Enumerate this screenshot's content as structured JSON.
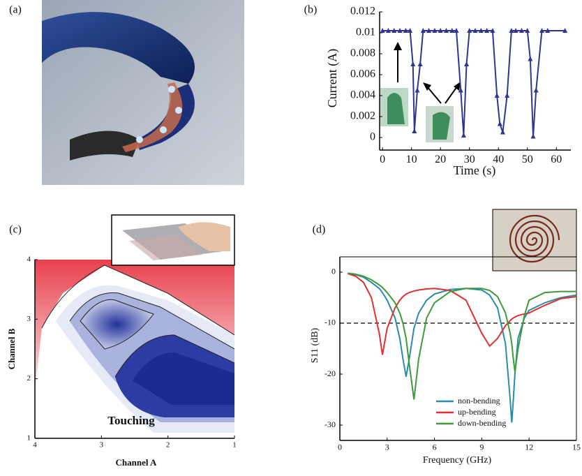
{
  "photo_panel": {
    "label": "(a)"
  },
  "chart_data": [
    {
      "type": "line",
      "label": "(b)",
      "x_label": "Time (s)",
      "y_label": "Current (A)",
      "xlim": [
        -1,
        65
      ],
      "xticks": [
        0,
        10,
        20,
        30,
        40,
        50,
        60
      ],
      "ylim": [
        -0.0012,
        0.012
      ],
      "yticks": [
        0,
        0.002,
        0.004,
        0.006,
        0.008,
        0.01,
        0.012
      ],
      "marker": "triangle",
      "series": [
        {
          "color": "#2e3592",
          "x": [
            0,
            2,
            4,
            6,
            8,
            9.5,
            10.5,
            11,
            12,
            13,
            14,
            16,
            18,
            20,
            22,
            24,
            25.5,
            27,
            28,
            29,
            30,
            32,
            34,
            36,
            38,
            39.5,
            40.5,
            41.5,
            43,
            44.5,
            46,
            48,
            50,
            51,
            52,
            53,
            55,
            57,
            63
          ],
          "values": [
            0.0102,
            0.0102,
            0.0102,
            0.0102,
            0.0102,
            0.0102,
            0.007,
            0.0006,
            0.0045,
            0.007,
            0.0102,
            0.0102,
            0.0102,
            0.0102,
            0.0102,
            0.0102,
            0.0102,
            0.0045,
            0.0002,
            0.007,
            0.0102,
            0.0102,
            0.0102,
            0.0102,
            0.0102,
            0.004,
            0.0013,
            0.0005,
            0.004,
            0.0102,
            0.0102,
            0.0102,
            0.0102,
            0.0075,
            0.0001,
            0.0045,
            0.0102,
            0.0102,
            0.0102
          ]
        }
      ]
    },
    {
      "type": "contour",
      "label": "(c)",
      "x_label": "Channel A",
      "y_label": "Channel B",
      "xlim": [
        4,
        1
      ],
      "xticks": [
        4,
        3,
        2,
        1
      ],
      "ylim": [
        1,
        4
      ],
      "yticks": [
        1,
        2,
        3,
        4
      ],
      "annotation": "Touching"
    },
    {
      "type": "line",
      "label": "(d)",
      "x_label": "Frequency (GHz)",
      "y_label": "S11 (dB)",
      "xlim": [
        0,
        15
      ],
      "xticks": [
        0,
        3,
        6,
        9,
        12,
        15
      ],
      "ylim": [
        -33,
        3
      ],
      "yticks": [
        0,
        -10,
        -20,
        -30
      ],
      "hline": -10,
      "x": [
        0.5,
        1,
        1.5,
        2,
        2.5,
        2.7,
        3,
        3.5,
        3.8,
        4,
        4.2,
        4.4,
        4.7,
        5,
        5.5,
        6,
        7,
        8,
        9,
        9.5,
        10,
        10.5,
        10.8,
        10.9,
        11,
        11.1,
        11.3,
        11.7,
        12,
        13,
        14,
        15
      ],
      "series": [
        {
          "name": "non-bending",
          "color": "#2a8ca6",
          "values": [
            -0.3,
            -0.5,
            -1,
            -2,
            -3.2,
            -4,
            -5.5,
            -9,
            -13,
            -17,
            -20.5,
            -17,
            -11,
            -8,
            -5.5,
            -4.3,
            -3.4,
            -3.2,
            -3.5,
            -4.5,
            -7,
            -14,
            -25,
            -29.5,
            -25,
            -20,
            -13,
            -9,
            -7.5,
            -6,
            -5,
            -4.5
          ]
        },
        {
          "name": "up-bending",
          "color": "#e0302f",
          "values": [
            -0.3,
            -0.8,
            -2,
            -5,
            -12,
            -16.2,
            -11,
            -7,
            -5.5,
            -4.8,
            -4.3,
            -4,
            -3.7,
            -3.5,
            -3.3,
            -3.2,
            -3.6,
            -5.5,
            -12,
            -14.5,
            -13,
            -10.5,
            -9.5,
            -9.2,
            -9,
            -8.8,
            -8.5,
            -8.2,
            -8,
            -6.5,
            -5.2,
            -4.8
          ]
        },
        {
          "name": "down-bending",
          "color": "#3d9a3a",
          "values": [
            -0.2,
            -0.4,
            -0.8,
            -1.5,
            -2.5,
            -3,
            -4,
            -6,
            -8,
            -10,
            -13,
            -18,
            -25,
            -17,
            -9,
            -6,
            -3.8,
            -3.2,
            -3.2,
            -3.6,
            -4.8,
            -8,
            -12,
            -14,
            -17,
            -19.5,
            -15,
            -8.5,
            -5.5,
            -4,
            -3.8,
            -3.8
          ]
        }
      ]
    }
  ]
}
